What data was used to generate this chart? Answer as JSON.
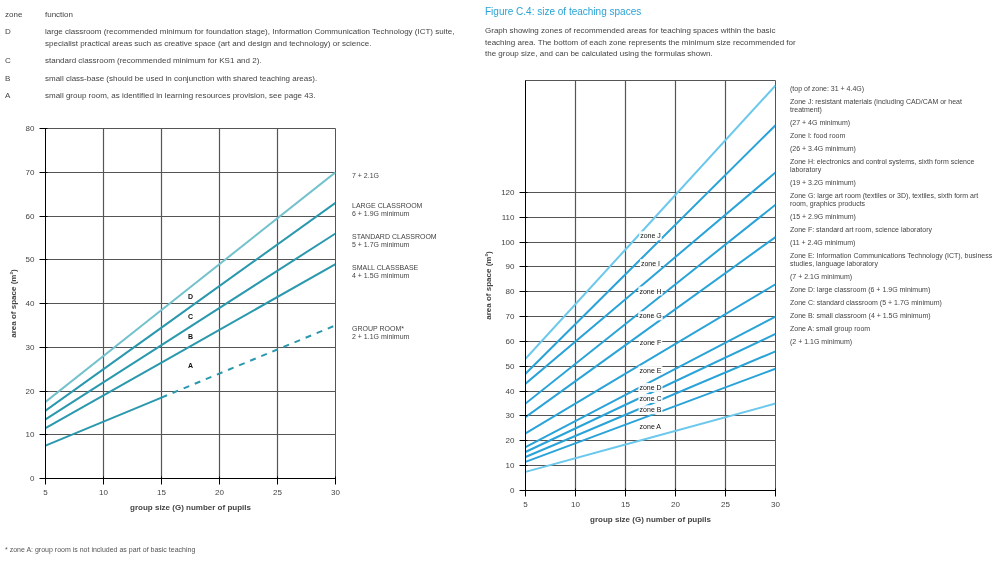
{
  "chart_data": [
    {
      "type": "line",
      "xlabel": "group size (G) number of pupils",
      "ylabel": "area of space (m²)",
      "xlim": [
        5,
        30
      ],
      "ylim": [
        0,
        80
      ],
      "xticks": [
        5,
        10,
        15,
        20,
        25,
        30
      ],
      "yticks": [
        0,
        10,
        20,
        30,
        40,
        50,
        60,
        70,
        80
      ],
      "grid": true,
      "annotations": [
        "D",
        "C",
        "B",
        "A",
        "zone",
        "function",
        "D",
        "large classroom (recommended minimum for foundation stage), Information Communication Technology (ICT) suite, specialist practical areas such as creative space (art and design and technology) or science.",
        "C",
        "standard classroom (recommended minimum for KS1 and 2).",
        "B",
        "small class-base (should be used in conjunction with shared teaching areas).",
        "A",
        "small group room, as identified in learning resources provision, see page 43.",
        "* zone A: group room is not included as part of basic teaching"
      ],
      "series": [
        {
          "name": "7 + 2.1G",
          "color": "#72c1cc",
          "x": [
            5,
            15,
            30
          ],
          "values": [
            17.5,
            38.5,
            70
          ]
        },
        {
          "name": "LARGE CLASSROOM\n6 + 1.9G minimum",
          "color": "#2a98ad",
          "x": [
            5,
            15,
            30
          ],
          "values": [
            15.5,
            34.5,
            63
          ]
        },
        {
          "name": "STANDARD CLASSROOM\n5 + 1.7G minimum",
          "color": "#2a98ad",
          "x": [
            5,
            15,
            30
          ],
          "values": [
            13.5,
            30.5,
            56
          ]
        },
        {
          "name": "SMALL CLASSBASE\n4 + 1.5G minimum",
          "color": "#2a98ad",
          "x": [
            5,
            15,
            30
          ],
          "values": [
            11.5,
            26.5,
            49
          ]
        },
        {
          "color": "#2a98ad",
          "x": [
            5,
            15
          ],
          "values": [
            7.5,
            18.5
          ]
        },
        {
          "name": "GROUP ROOM*\n2 + 1.1G minimum",
          "color": "#2a98ad",
          "x": [
            15,
            30
          ],
          "values": [
            18.5,
            35
          ],
          "line_style": "dashed"
        }
      ]
    },
    {
      "type": "line",
      "title": "Figure C.4: size of teaching spaces",
      "subtitle": "Graph showing zones of recommended areas for teaching spaces within the basic teaching area. The bottom of each zone represents the minimum size recommended for the group size, and can be calculated using the formulas shown.",
      "xlabel": "group size (G) number of pupils",
      "ylabel": "area of space (m²)",
      "xlim": [
        5,
        30
      ],
      "ylim": [
        0,
        165
      ],
      "xticks": [
        5,
        10,
        15,
        20,
        25,
        30
      ],
      "yticks": [
        0,
        10,
        20,
        30,
        40,
        50,
        60,
        70,
        80,
        90,
        100,
        110,
        120
      ],
      "grid": true,
      "annotations": [
        "zone J",
        "zone I",
        "zone H",
        "zone G",
        "zone F",
        "zone E",
        "zone D",
        "zone C",
        "zone B",
        "zone A",
        "(top of zone: 31 + 4.4G)",
        "Zone J: resistant materials (including CAD/CAM or heat treatment)",
        "(27 + 4G minimum)",
        "Zone I: food room",
        "(26 + 3.4G minimum)",
        "Zone H: electronics and control systems, sixth form science laboratory",
        "(19 + 3.2G minimum)",
        "Zone G: large art room (textiles or 3D), textiles, sixth form art room, graphics products",
        "(15 + 2.9G minimum)",
        "Zone F: standard art room, science laboratory",
        "(11 + 2.4G minimum)",
        "Zone E: Information Communications Technology (ICT), business studies, language laboratory",
        "(7 + 2.1G minimum)",
        "Zone D: large classroom (6 + 1.9G minimum)",
        "Zone C: standard classroom (5 + 1.7G minimum)",
        "Zone B: small classroom (4 + 1.5G minimum)",
        "Zone A: small group room",
        "(2 + 1.1G minimum)"
      ],
      "series": [
        {
          "color": "#6cc8ec",
          "x": [
            5,
            15,
            30
          ],
          "values": [
            53,
            97,
            163
          ]
        },
        {
          "color": "#2aa3d8",
          "x": [
            5,
            15,
            30
          ],
          "values": [
            47,
            87,
            147
          ]
        },
        {
          "color": "#2aa3d8",
          "x": [
            5,
            15,
            30
          ],
          "values": [
            43,
            77,
            128
          ]
        },
        {
          "color": "#2aa3d8",
          "x": [
            5,
            15,
            30
          ],
          "values": [
            35,
            67,
            115
          ]
        },
        {
          "color": "#2aa3d8",
          "x": [
            5,
            15,
            30
          ],
          "values": [
            29.5,
            58.5,
            102
          ]
        },
        {
          "color": "#2aa3d8",
          "x": [
            5,
            15,
            30
          ],
          "values": [
            23,
            47,
            83
          ]
        },
        {
          "color": "#2aa3d8",
          "x": [
            5,
            15,
            30
          ],
          "values": [
            17.5,
            38.5,
            70
          ]
        },
        {
          "color": "#2aa3d8",
          "x": [
            5,
            15,
            30
          ],
          "values": [
            15.5,
            34.5,
            63
          ]
        },
        {
          "color": "#2aa3d8",
          "x": [
            5,
            15,
            30
          ],
          "values": [
            13.5,
            30.5,
            56
          ]
        },
        {
          "color": "#2aa3d8",
          "x": [
            5,
            15,
            30
          ],
          "values": [
            11.5,
            26.5,
            49
          ]
        },
        {
          "color": "#6cc8ec",
          "x": [
            5,
            15,
            30
          ],
          "values": [
            7.5,
            18.5,
            35
          ]
        }
      ]
    }
  ]
}
